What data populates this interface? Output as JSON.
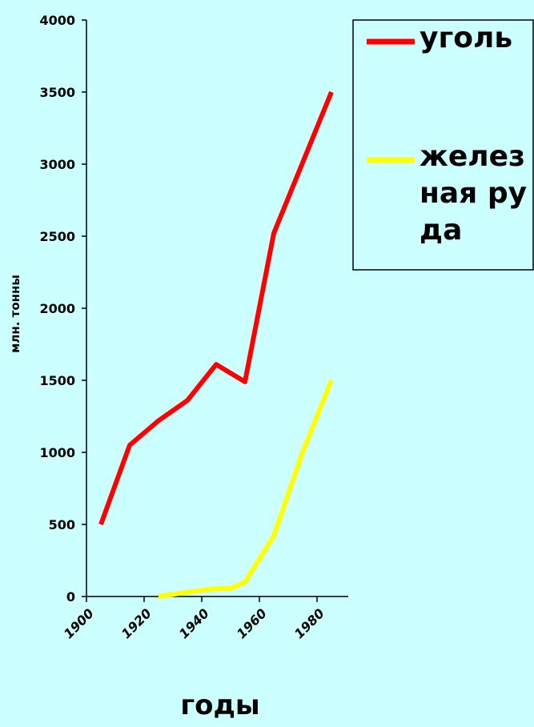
{
  "chart_data": {
    "type": "line",
    "x_label": "годы",
    "y_label": "млн. тонны",
    "series": [
      {
        "name": "уголь",
        "color": "#ff0000",
        "x": [
          1905,
          1915,
          1925,
          1935,
          1945,
          1955,
          1965,
          1985
        ],
        "values": [
          500,
          1050,
          1220,
          1360,
          1610,
          1490,
          2520,
          3500
        ]
      },
      {
        "name": "железная руда",
        "color": "#ffff00",
        "x": [
          1925,
          1935,
          1945,
          1950,
          1955,
          1965,
          1975,
          1985
        ],
        "values": [
          0,
          30,
          55,
          55,
          100,
          420,
          1000,
          1500
        ]
      }
    ],
    "xlim": [
      1900,
      1990
    ],
    "xticks": [
      1900,
      1920,
      1940,
      1960,
      1980
    ],
    "ylim": [
      0,
      4000
    ],
    "yticks": [
      0,
      500,
      1000,
      1500,
      2000,
      2500,
      3000,
      3500,
      4000
    ],
    "legend": "right"
  }
}
